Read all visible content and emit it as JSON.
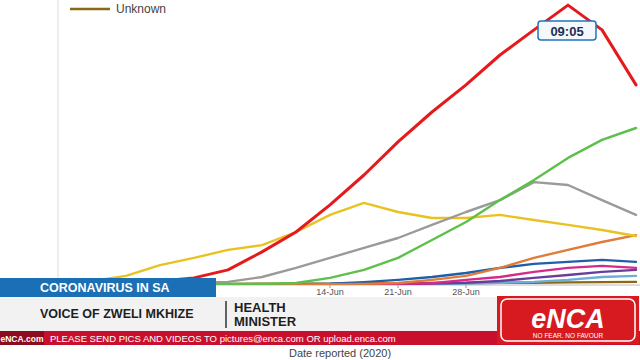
{
  "chart_data": {
    "type": "line",
    "x_label": "Date reported (2020)",
    "categories": [
      null,
      null,
      null,
      null,
      null,
      null,
      null,
      null,
      "14-Jun",
      null,
      "21-Jun",
      null,
      "28-Jun",
      null,
      null,
      null,
      null,
      null
    ],
    "ylim": [
      0,
      100
    ],
    "tick_labels": "x",
    "grid": false,
    "legend": "upper-left",
    "series": [
      {
        "name": "Unknown",
        "color": "#8b6914",
        "values": [
          0.3,
          0.3,
          0.3,
          0.4,
          0.4,
          0.4,
          0.5,
          0.5,
          0.5,
          0.6,
          0.6,
          0.7,
          0.7,
          0.8,
          0.8,
          0.9,
          1.0,
          1.1
        ]
      },
      {
        "color": "#6baed6",
        "values": [
          0,
          0,
          0,
          0,
          0,
          0,
          0,
          0,
          0.1,
          0.1,
          0.2,
          0.3,
          0.5,
          0.8,
          1.1,
          1.8,
          2.8,
          3.2
        ]
      },
      {
        "color": "#6a3d9a",
        "values": [
          0,
          0,
          0,
          0,
          0,
          0,
          0,
          0.1,
          0.1,
          0.2,
          0.3,
          0.5,
          0.8,
          1.4,
          2.5,
          3.5,
          4.6,
          5.3
        ]
      },
      {
        "color": "#d42a8a",
        "values": [
          0,
          0,
          0,
          0,
          0,
          0,
          0.1,
          0.1,
          0.2,
          0.3,
          0.4,
          0.6,
          1.8,
          2.8,
          4.6,
          6.0,
          6.7,
          6.0
        ]
      },
      {
        "color": "#1f5fa8",
        "values": [
          0,
          0,
          0,
          0,
          0,
          0.1,
          0.2,
          0.3,
          0.5,
          1.0,
          1.8,
          2.8,
          4.2,
          6.0,
          7.4,
          8.1,
          8.8,
          8.1
        ]
      },
      {
        "color": "#e07b39",
        "values": [
          0,
          0,
          0,
          0,
          0,
          0,
          0.1,
          0.2,
          0.3,
          0.4,
          0.7,
          1.8,
          3.2,
          6.0,
          9.5,
          12.3,
          15.1,
          17.5
        ]
      },
      {
        "color": "#e8c220",
        "values": [
          0.7,
          1.4,
          3.2,
          7.0,
          9.5,
          12.3,
          14.0,
          18.6,
          24.6,
          28.8,
          25.6,
          23.5,
          23.5,
          24.6,
          22.8,
          21.1,
          19.3,
          17.2
        ]
      },
      {
        "color": "#9a9a9a",
        "values": [
          0,
          0,
          0.4,
          0.4,
          0.7,
          1.1,
          2.8,
          6.0,
          9.5,
          13.0,
          16.5,
          21.1,
          25.6,
          29.8,
          36.1,
          35.1,
          29.8,
          24.6
        ]
      },
      {
        "color": "#5cc04a",
        "values": [
          0,
          0,
          0,
          0,
          0.2,
          0.4,
          0.4,
          0.7,
          2.5,
          5.3,
          9.5,
          15.8,
          22.1,
          29.8,
          36.8,
          44.6,
          50.9,
          55.1
        ]
      },
      {
        "color": "#e41a1c",
        "values": [
          0.4,
          0.7,
          0.7,
          1.4,
          2.5,
          5.3,
          11.6,
          18.6,
          28.1,
          38.6,
          50.2,
          60.7,
          70.2,
          80.7,
          89.5,
          98.2,
          89.5,
          70.2
        ]
      }
    ]
  },
  "overlay": {
    "clock": "09:05",
    "topic": "CORONAVIRUS IN SA",
    "speaker": "VOICE OF ZWELI MKHIZE",
    "role": [
      "HEALTH",
      "MINISTER"
    ],
    "ticker_source": "eNCA.com",
    "ticker": "PLEASE SEND PICS AND VIDEOS TO pictures@enca.com OR upload.enca.com",
    "logo": "eNCA",
    "slogan": "NO FEAR. NO FAVOUR"
  }
}
